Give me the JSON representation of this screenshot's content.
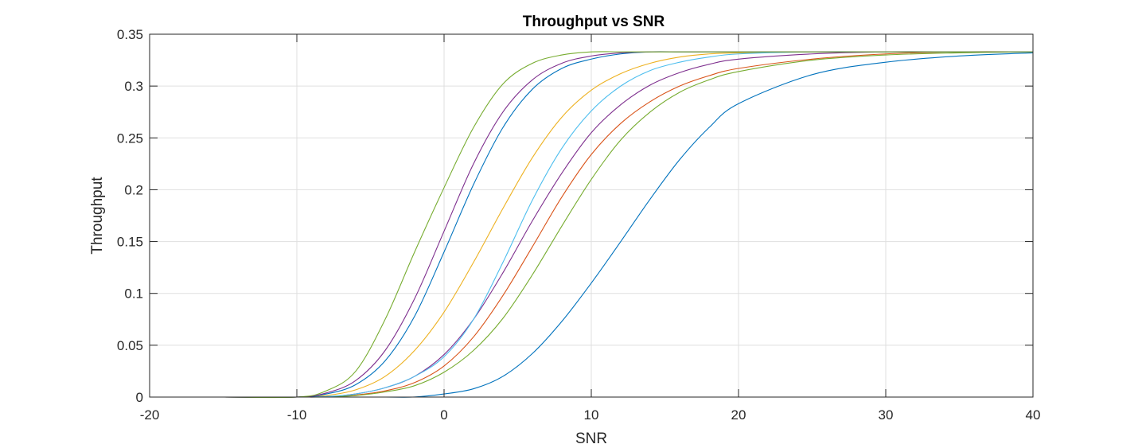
{
  "chart_data": {
    "type": "line",
    "title": "Throughput vs SNR",
    "xlabel": "SNR",
    "ylabel": "Throughput",
    "xlim": [
      -20,
      40
    ],
    "ylim": [
      0,
      0.35
    ],
    "xticks": [
      "-20",
      "-10",
      "0",
      "10",
      "20",
      "30",
      "40"
    ],
    "yticks": [
      "0",
      "0.05",
      "0.1",
      "0.15",
      "0.2",
      "0.25",
      "0.3",
      "0.35"
    ],
    "grid": true,
    "legend": "none",
    "x": [
      -20,
      -15,
      -10,
      -8,
      -6,
      -4,
      -2,
      0,
      2,
      4,
      6,
      8,
      10,
      12,
      14,
      16,
      18,
      20,
      25,
      30,
      35,
      40
    ],
    "series": [
      {
        "color": "#0072BD",
        "values": [
          0,
          0,
          0,
          0,
          0,
          0,
          0.0001,
          0.003,
          0.008,
          0.02,
          0.042,
          0.073,
          0.11,
          0.15,
          0.191,
          0.229,
          0.26,
          0.283,
          0.311,
          0.323,
          0.329,
          0.332
        ]
      },
      {
        "color": "#D95319",
        "values": [
          0,
          0,
          0,
          0.0003,
          0.002,
          0.006,
          0.014,
          0.03,
          0.058,
          0.098,
          0.145,
          0.193,
          0.234,
          0.264,
          0.285,
          0.3,
          0.31,
          0.317,
          0.326,
          0.331,
          0.333,
          0.333
        ]
      },
      {
        "color": "#EDB120",
        "values": [
          0,
          0,
          0,
          0.0015,
          0.007,
          0.02,
          0.045,
          0.082,
          0.13,
          0.182,
          0.231,
          0.27,
          0.296,
          0.312,
          0.322,
          0.328,
          0.331,
          0.332,
          0.333,
          0.333,
          0.333,
          0.333
        ]
      },
      {
        "color": "#7E2F8E",
        "values": [
          0,
          0,
          0,
          0.0003,
          0.003,
          0.009,
          0.02,
          0.041,
          0.075,
          0.12,
          0.17,
          0.216,
          0.255,
          0.282,
          0.301,
          0.313,
          0.321,
          0.326,
          0.331,
          0.333,
          0.333,
          0.333
        ]
      },
      {
        "color": "#77AC30",
        "values": [
          0,
          0,
          0,
          0.0002,
          0.0015,
          0.005,
          0.011,
          0.024,
          0.045,
          0.076,
          0.118,
          0.165,
          0.21,
          0.248,
          0.275,
          0.294,
          0.306,
          0.314,
          0.325,
          0.33,
          0.332,
          0.333
        ]
      },
      {
        "color": "#4DBEEE",
        "values": [
          0,
          0,
          0,
          0.0005,
          0.003,
          0.009,
          0.02,
          0.039,
          0.075,
          0.13,
          0.19,
          0.24,
          0.276,
          0.3,
          0.315,
          0.323,
          0.328,
          0.331,
          0.333,
          0.333,
          0.333,
          0.333
        ]
      },
      {
        "color": "#0072BD",
        "values": [
          0,
          0,
          0,
          0.003,
          0.012,
          0.035,
          0.078,
          0.14,
          0.205,
          0.26,
          0.297,
          0.317,
          0.326,
          0.331,
          0.333,
          0.333,
          0.333,
          0.333,
          0.333,
          0.333,
          0.333,
          0.333
        ]
      },
      {
        "color": "#7E2F8E",
        "values": [
          0,
          0,
          0,
          0.004,
          0.016,
          0.045,
          0.095,
          0.16,
          0.225,
          0.275,
          0.306,
          0.322,
          0.329,
          0.332,
          0.333,
          0.333,
          0.333,
          0.333,
          0.333,
          0.333,
          0.333,
          0.333
        ]
      },
      {
        "color": "#77AC30",
        "values": [
          0,
          0,
          0,
          0.006,
          0.025,
          0.075,
          0.14,
          0.202,
          0.26,
          0.302,
          0.322,
          0.33,
          0.333,
          0.333,
          0.333,
          0.333,
          0.333,
          0.333,
          0.333,
          0.333,
          0.333,
          0.333
        ]
      }
    ]
  }
}
